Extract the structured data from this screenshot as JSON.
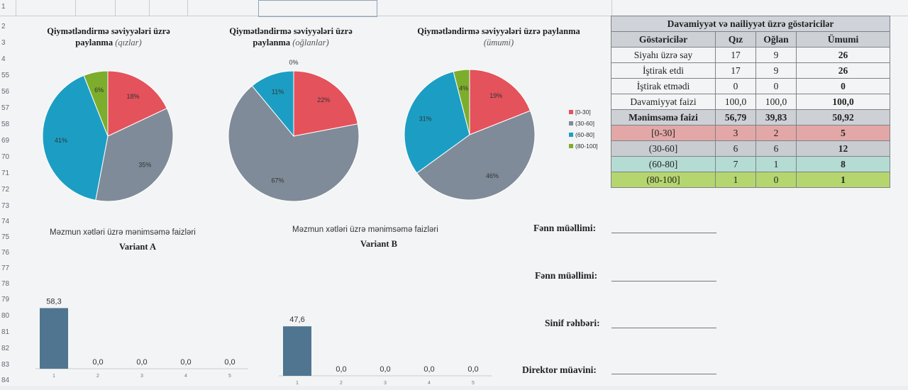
{
  "row_numbers": [
    "1",
    "2",
    "3",
    "4",
    "55",
    "56",
    "57",
    "58",
    "69",
    "70",
    "71",
    "72",
    "73",
    "74",
    "75",
    "76",
    "77",
    "78",
    "79",
    "80",
    "81",
    "82",
    "83",
    "84"
  ],
  "colors": {
    "c0_30": "#e4525c",
    "c30_60": "#7f8b98",
    "c60_80": "#1c9ec4",
    "c80_100": "#7cad2c",
    "bar": "#4f7590"
  },
  "chart_data": [
    {
      "type": "pie",
      "title_main": "Qiymətləndirmə səviyyələri üzrə paylanma",
      "title_sub": "(qızlar)",
      "labels": [
        "[0-30]",
        "(30-60]",
        "(60-80]",
        "(80-100]"
      ],
      "values": [
        18,
        35,
        41,
        6
      ],
      "value_labels": [
        "18%",
        "35%",
        "41%",
        "6%"
      ]
    },
    {
      "type": "pie",
      "title_main": "Qiymətləndirmə səviyyələri üzrə paylanma",
      "title_sub": "(oğlanlar)",
      "labels": [
        "[0-30]",
        "(30-60]",
        "(60-80]",
        "(80-100]"
      ],
      "values": [
        22,
        67,
        11,
        0
      ],
      "value_labels": [
        "22%",
        "67%",
        "11%",
        "0%"
      ]
    },
    {
      "type": "pie",
      "title_main": "Qiymətləndirmə səviyyələri üzrə paylanma",
      "title_sub": "(ümumi)",
      "labels": [
        "[0-30]",
        "(30-60]",
        "(60-80]",
        "(80-100]"
      ],
      "values": [
        19,
        46,
        31,
        4
      ],
      "value_labels": [
        "19%",
        "46%",
        "31%",
        "4%"
      ],
      "legend": [
        "[0-30]",
        "(30-60]",
        "(60-80]",
        "(80-100]"
      ]
    },
    {
      "type": "bar",
      "title": "Məzmun xətləri üzrə mənimsəmə faizləri",
      "subtitle": "Variant A",
      "categories": [
        "1",
        "2",
        "3",
        "4",
        "5"
      ],
      "values": [
        58.3,
        0,
        0,
        0,
        0
      ],
      "value_labels": [
        "58,3",
        "0,0",
        "0,0",
        "0,0",
        "0,0"
      ]
    },
    {
      "type": "bar",
      "title": "Məzmun xətləri üzrə mənimsəmə faizləri",
      "subtitle": "Variant B",
      "categories": [
        "1",
        "2",
        "3",
        "4",
        "5"
      ],
      "values": [
        47.6,
        0,
        0,
        0,
        0
      ],
      "value_labels": [
        "47,6",
        "0,0",
        "0,0",
        "0,0",
        "0,0"
      ]
    }
  ],
  "table": {
    "title": "Davamiyyət və nailiyyət üzrə göstəricilər",
    "headers": [
      "Göstəricilər",
      "Qız",
      "Oğlan",
      "Ümumi"
    ],
    "rows": [
      [
        "Siyahı üzrə say",
        "17",
        "9",
        "26"
      ],
      [
        "İştirak etdi",
        "17",
        "9",
        "26"
      ],
      [
        "İştirak etmədi",
        "0",
        "0",
        "0"
      ],
      [
        "Davamiyyət faizi",
        "100,0",
        "100,0",
        "100,0"
      ],
      [
        "Mənimsəmə faizi",
        "56,79",
        "39,83",
        "50,92"
      ],
      [
        "[0-30]",
        "3",
        "2",
        "5"
      ],
      [
        "(30-60]",
        "6",
        "6",
        "12"
      ],
      [
        "(60-80]",
        "7",
        "1",
        "8"
      ],
      [
        "(80-100]",
        "1",
        "0",
        "1"
      ]
    ]
  },
  "signatures": [
    "Fənn müəllimi:",
    "Fənn müəllimi:",
    "Sinif rəhbəri:",
    "Direktor müavini:"
  ]
}
